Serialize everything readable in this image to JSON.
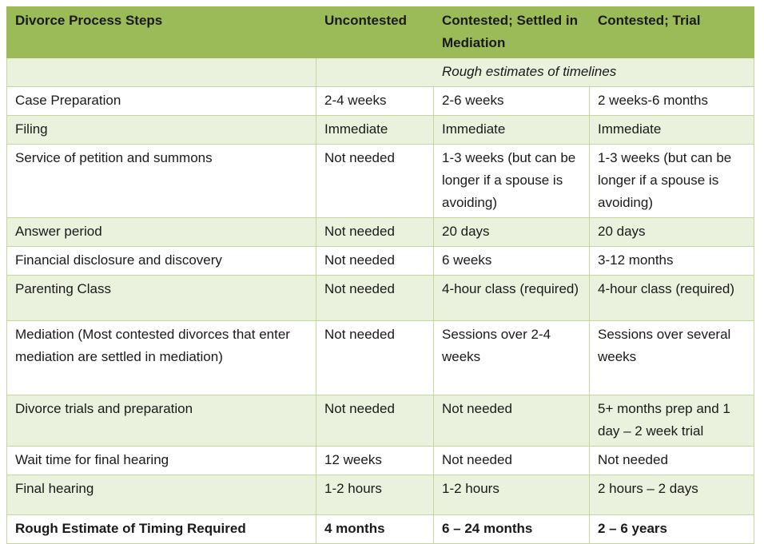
{
  "table": {
    "headers": [
      "Divorce Process Steps",
      "Uncontested",
      "Contested; Settled in Mediation",
      "Contested; Trial"
    ],
    "subheader": "Rough estimates of timelines",
    "rows": [
      [
        "Case Preparation",
        "2-4 weeks",
        "2-6 weeks",
        "2 weeks-6 months"
      ],
      [
        "Filing",
        "Immediate",
        "Immediate",
        "Immediate"
      ],
      [
        "Service of petition and summons",
        "Not needed",
        "1-3 weeks (but can be longer if a spouse is avoiding)",
        "1-3 weeks (but can be longer if a spouse is avoiding)"
      ],
      [
        "Answer period",
        "Not needed",
        "20 days",
        "20 days"
      ],
      [
        "Financial disclosure and discovery",
        "Not needed",
        "6 weeks",
        "3-12 months"
      ],
      [
        "Parenting Class",
        "Not needed",
        "4-hour class (required)",
        "4-hour class (required)"
      ],
      [
        "Mediation (Most contested divorces that enter mediation are settled in mediation)",
        "Not needed",
        "Sessions over 2-4 weeks",
        "Sessions over several weeks"
      ],
      [
        "Divorce trials and preparation",
        "Not needed",
        "Not needed",
        "5+ months prep and 1 day – 2 week trial"
      ],
      [
        "Wait time for final hearing",
        "12 weeks",
        "Not needed",
        "Not needed"
      ],
      [
        "Final hearing",
        "1-2 hours",
        "1-2 hours",
        "2 hours – 2 days"
      ]
    ],
    "total": [
      "Rough Estimate of Timing Required",
      "4 months",
      "6 – 24 months",
      "2 – 6 years"
    ]
  }
}
